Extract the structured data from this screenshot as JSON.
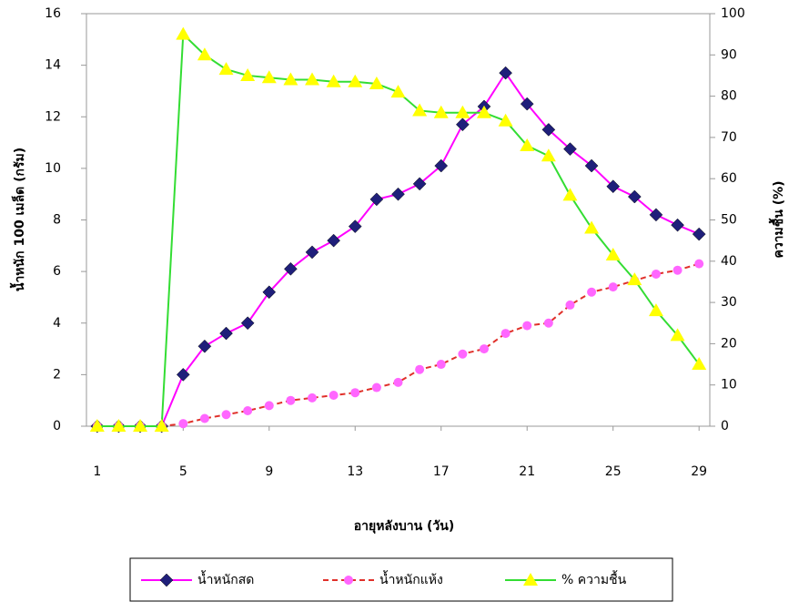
{
  "chart_data": {
    "type": "line",
    "x_label": "อายุหลังบาน (วัน)",
    "y_label": "น้ำหนัก 100 เมล็ด (กรัม)",
    "y2_label": "ความชื้น (%)",
    "x": [
      1,
      2,
      3,
      4,
      5,
      6,
      7,
      8,
      9,
      10,
      11,
      12,
      13,
      14,
      15,
      16,
      17,
      18,
      19,
      20,
      21,
      22,
      23,
      24,
      25,
      26,
      27,
      28,
      29
    ],
    "xlim": [
      0.5,
      29.5
    ],
    "xticks": [
      1,
      5,
      9,
      13,
      17,
      21,
      25,
      29
    ],
    "ylim": [
      0,
      16
    ],
    "yticks": [
      0,
      2,
      4,
      6,
      8,
      10,
      12,
      14,
      16
    ],
    "y2lim": [
      0,
      100
    ],
    "y2ticks": [
      0,
      10,
      20,
      30,
      40,
      50,
      60,
      70,
      80,
      90,
      100
    ],
    "legend": "bottom",
    "series": [
      {
        "name": "น้ำหนักสด",
        "color": "#ff00ff",
        "marker_color": "#1f1f7a",
        "marker": "diamond",
        "values": [
          0,
          0,
          0,
          0,
          2.0,
          3.1,
          3.6,
          4.0,
          5.2,
          6.1,
          6.75,
          7.2,
          7.75,
          8.8,
          9.0,
          9.4,
          10.1,
          11.7,
          12.4,
          13.7,
          12.5,
          11.5,
          10.75,
          10.1,
          9.3,
          8.9,
          8.2,
          7.8,
          7.45
        ]
      },
      {
        "name": "น้ำหนักแห้ง",
        "color": "#e0302a",
        "marker_color": "#ff66ff",
        "marker": "circle",
        "dashed": true,
        "values": [
          0,
          0,
          0,
          0,
          0.1,
          0.3,
          0.45,
          0.6,
          0.8,
          1.0,
          1.1,
          1.2,
          1.3,
          1.5,
          1.7,
          2.2,
          2.4,
          2.8,
          3.0,
          3.6,
          3.9,
          4.0,
          4.7,
          5.2,
          5.4,
          5.65,
          5.9,
          6.05,
          6.3
        ]
      },
      {
        "name": "% ความชื้น",
        "color": "#33dd33",
        "marker_color": "#ffff00",
        "marker": "triangle",
        "axis": "y2",
        "values": [
          0,
          0,
          0,
          0,
          95,
          90,
          86.5,
          85,
          84.5,
          84,
          84,
          83.5,
          83.5,
          83,
          81,
          76.5,
          76,
          76,
          76,
          74,
          68,
          65.5,
          56,
          48,
          41.5,
          35.5,
          28,
          22,
          15
        ]
      }
    ]
  }
}
